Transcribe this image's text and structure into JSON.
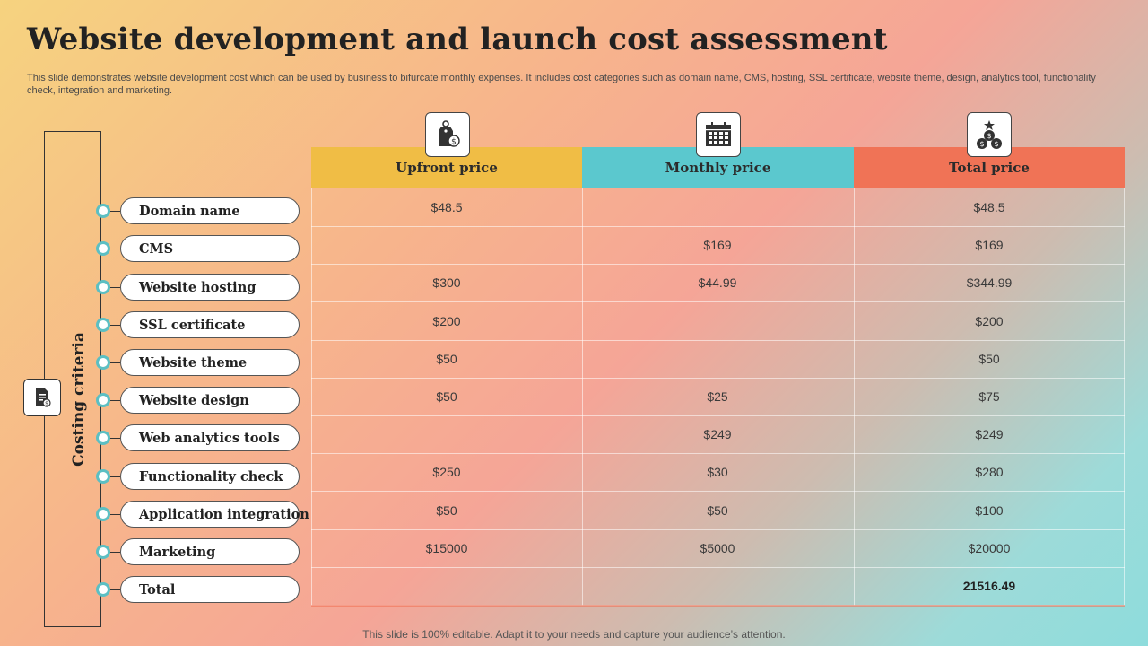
{
  "title": "Website development and launch cost assessment",
  "subtitle": "This slide demonstrates website development cost which can be used by business to bifurcate monthly expenses. It includes cost categories such as domain name, CMS, hosting, SSL certificate, website theme, design, analytics tool, functionality check, integration and marketing.",
  "side_label": "Costing criteria",
  "colors": {
    "upfront": "#f0bd45",
    "monthly": "#5bc8ce",
    "total": "#f07356",
    "dot": "#5cbfc3"
  },
  "columns": [
    {
      "label": "Upfront price",
      "icon": "price-tag-dollar-icon"
    },
    {
      "label": "Monthly price",
      "icon": "calendar-icon"
    },
    {
      "label": "Total price",
      "icon": "money-bags-icon"
    }
  ],
  "rows": [
    {
      "label": "Domain name",
      "upfront": "$48.5",
      "monthly": "",
      "total": "$48.5"
    },
    {
      "label": "CMS",
      "upfront": "",
      "monthly": "$169",
      "total": "$169"
    },
    {
      "label": "Website hosting",
      "upfront": "$300",
      "monthly": "$44.99",
      "total": "$344.99"
    },
    {
      "label": "SSL certificate",
      "upfront": "$200",
      "monthly": "",
      "total": "$200"
    },
    {
      "label": "Website theme",
      "upfront": "$50",
      "monthly": "",
      "total": "$50"
    },
    {
      "label": "Website design",
      "upfront": "$50",
      "monthly": "$25",
      "total": "$75"
    },
    {
      "label": "Web analytics tools",
      "upfront": "",
      "monthly": "$249",
      "total": "$249"
    },
    {
      "label": "Functionality check",
      "upfront": "$250",
      "monthly": "$30",
      "total": "$280"
    },
    {
      "label": "Application integration",
      "upfront": "$50",
      "monthly": "$50",
      "total": "$100"
    },
    {
      "label": "Marketing",
      "upfront": "$15000",
      "monthly": "$5000",
      "total": "$20000"
    },
    {
      "label": "Total",
      "upfront": "",
      "monthly": "",
      "total": "21516.49"
    }
  ],
  "footer": "This slide is 100% editable. Adapt it to your needs and capture your audience’s attention."
}
